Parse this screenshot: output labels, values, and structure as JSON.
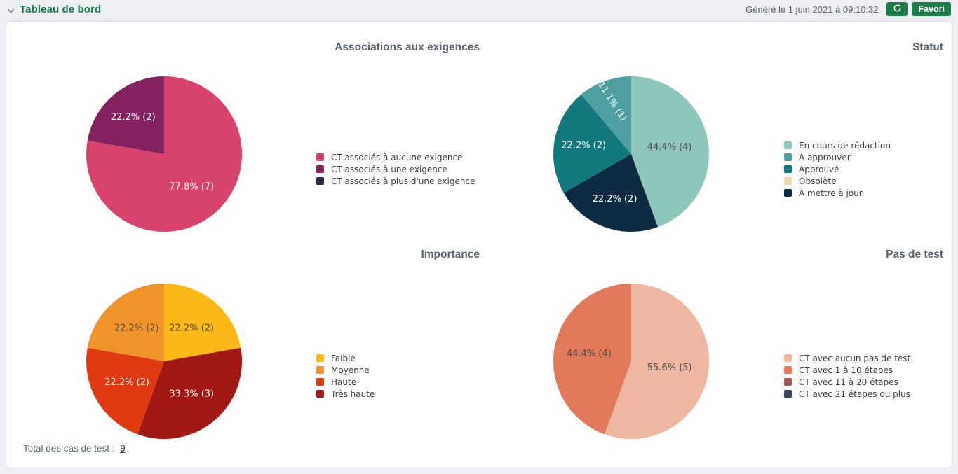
{
  "header": {
    "title": "Tableau de bord",
    "generated_label": "Généré le 1 juin 2021 à 09:10:32",
    "favorite_button_label": "Favori",
    "accent_color": "#1b7d47"
  },
  "footer": {
    "total_label": "Total des cas de test :",
    "total_value": "9"
  },
  "chart_data": [
    {
      "type": "pie",
      "title": "Associations aux exigences",
      "legend_position": "right",
      "total": 9,
      "slices": [
        {
          "label": "CT associés à aucune exigence",
          "value": 7,
          "pct_label": "77.8% (7)",
          "color": "#d8436b",
          "text_color": "#ffffff",
          "label_r": 0.55
        },
        {
          "label": "CT associés à une exigence",
          "value": 2,
          "pct_label": "22.2% (2)",
          "color": "#84215f",
          "text_color": "#ffffff",
          "label_r": 0.62
        }
      ],
      "legend": [
        {
          "label": "CT associés à aucune exigence",
          "color": "#d8436b"
        },
        {
          "label": "CT associés à une exigence",
          "color": "#84215f"
        },
        {
          "label": "CT associés à plus d'une exigence",
          "color": "#32254a"
        }
      ]
    },
    {
      "type": "pie",
      "title": "Statut",
      "legend_position": "right",
      "total": 9,
      "slices": [
        {
          "label": "En cours de rédaction",
          "value": 4,
          "pct_label": "44.4% (4)",
          "color": "#8fc6bb",
          "text_color": "#4a4a4a",
          "label_r": 0.5
        },
        {
          "label": "À mettre à jour",
          "value": 2,
          "pct_label": "22.2% (2)",
          "color": "#0d2c41",
          "text_color": "#ffffff",
          "label_r": 0.62
        },
        {
          "label": "Approuvé",
          "value": 2,
          "pct_label": "22.2% (2)",
          "color": "#11787d",
          "text_color": "#ffffff",
          "label_r": 0.62
        },
        {
          "label": "À approuver",
          "value": 1,
          "pct_label": "11.1% (1)",
          "color": "#4d9fa0",
          "text_color": "#ffffff",
          "label_r": 0.72,
          "label_rotate": 57
        }
      ],
      "legend": [
        {
          "label": "En cours de rédaction",
          "color": "#8fc6bb"
        },
        {
          "label": "À approuver",
          "color": "#4d9fa0"
        },
        {
          "label": "Approuvé",
          "color": "#11787d"
        },
        {
          "label": "Obsolète",
          "color": "#edd9ab"
        },
        {
          "label": "À mettre à jour",
          "color": "#0d2c41"
        }
      ]
    },
    {
      "type": "pie",
      "title": "Importance",
      "legend_position": "right",
      "total": 9,
      "slices": [
        {
          "label": "Faible",
          "value": 2,
          "pct_label": "22.2% (2)",
          "color": "#fbb917",
          "text_color": "#4a4a4a",
          "label_r": 0.55
        },
        {
          "label": "Très haute",
          "value": 3,
          "pct_label": "33.3% (3)",
          "color": "#a21815",
          "text_color": "#ffffff",
          "label_r": 0.55
        },
        {
          "label": "Haute",
          "value": 2,
          "pct_label": "22.2% (2)",
          "color": "#e03a12",
          "text_color": "#ffffff",
          "label_r": 0.55
        },
        {
          "label": "Moyenne",
          "value": 2,
          "pct_label": "22.2% (2)",
          "color": "#f0932a",
          "text_color": "#4a4a4a",
          "label_r": 0.55
        }
      ],
      "legend": [
        {
          "label": "Faible",
          "color": "#fbb917"
        },
        {
          "label": "Moyenne",
          "color": "#f0932a"
        },
        {
          "label": "Haute",
          "color": "#e03a12"
        },
        {
          "label": "Très haute",
          "color": "#a21815"
        }
      ]
    },
    {
      "type": "pie",
      "title": "Pas de test",
      "legend_position": "right",
      "total": 9,
      "slices": [
        {
          "label": "CT avec aucun pas de test",
          "value": 5,
          "pct_label": "55.6% (5)",
          "color": "#eeb7a1",
          "text_color": "#4a4a4a",
          "label_r": 0.5
        },
        {
          "label": "CT avec 1 à 10 étapes",
          "value": 4,
          "pct_label": "44.4% (4)",
          "color": "#e1795a",
          "text_color": "#4a4a4a",
          "label_r": 0.55
        }
      ],
      "legend": [
        {
          "label": "CT avec aucun pas de test",
          "color": "#eeb7a1"
        },
        {
          "label": "CT avec 1 à 10 étapes",
          "color": "#e1795a"
        },
        {
          "label": "CT avec 11 à 20 étapes",
          "color": "#9b5a55"
        },
        {
          "label": "CT avec 21 étapes ou plus",
          "color": "#39455e"
        }
      ]
    }
  ]
}
